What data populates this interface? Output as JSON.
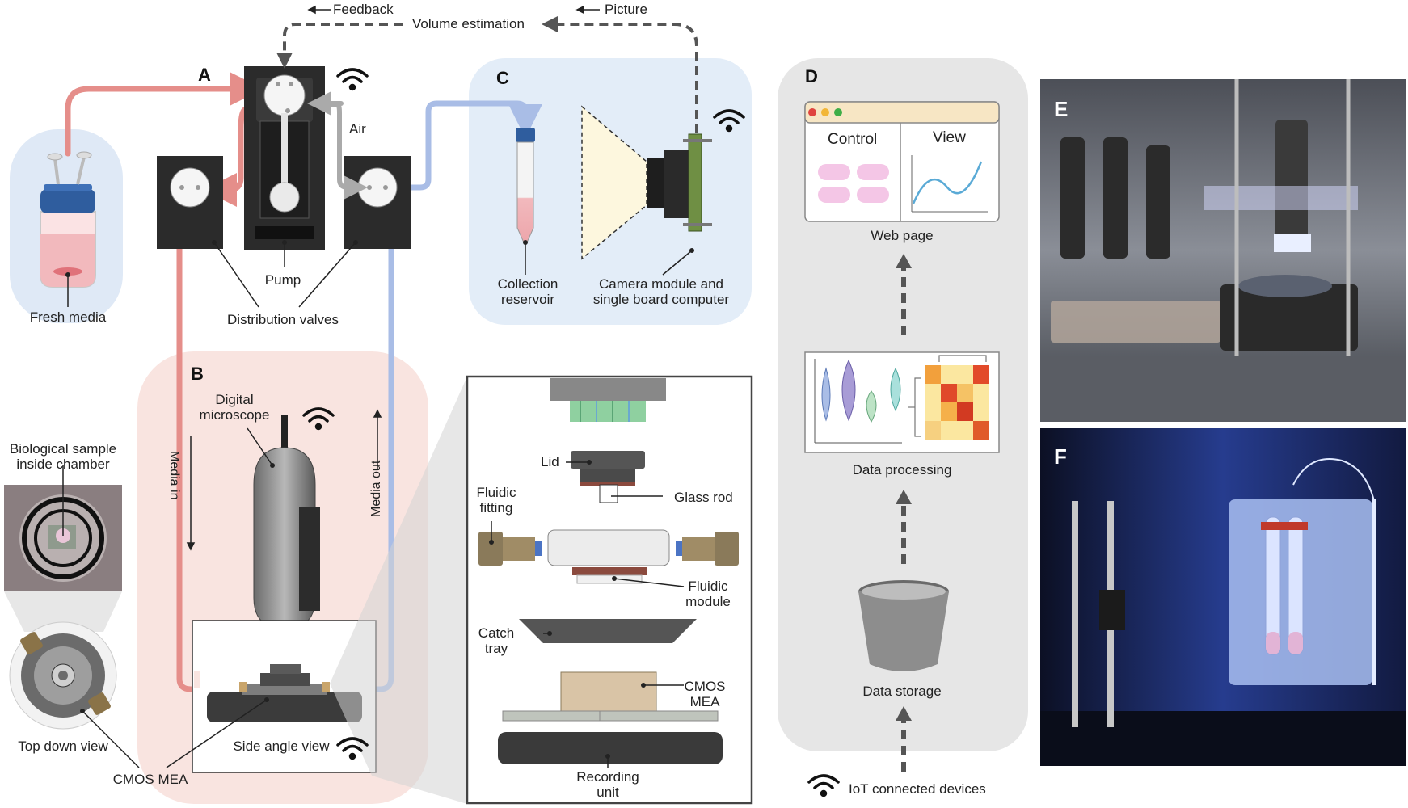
{
  "panels": {
    "a": "A",
    "b": "B",
    "c": "C",
    "d": "D",
    "e": "E",
    "f": "F"
  },
  "flow": {
    "feedback": "Feedback",
    "volume_estimation": "Volume estimation",
    "picture": "Picture",
    "air": "Air",
    "media_in": "Media in",
    "media_out": "Media out"
  },
  "labels": {
    "fresh_media": "Fresh media",
    "pump": "Pump",
    "distribution_valves": "Distribution valves",
    "collection_reservoir": "Collection\nreservoir",
    "camera_module": "Camera module and\nsingle board computer",
    "digital_microscope": "Digital\nmicroscope",
    "biological_sample": "Biological sample\ninside chamber",
    "top_down_view": "Top down view",
    "side_angle_view": "Side angle view",
    "cmos_mea": "CMOS MEA"
  },
  "exploded": {
    "lid": "Lid",
    "glass_rod": "Glass rod",
    "fluidic_fitting": "Fluidic\nfitting",
    "fluidic_module": "Fluidic\nmodule",
    "catch_tray": "Catch\ntray",
    "cmos_mea": "CMOS\nMEA",
    "recording_unit": "Recording\nunit"
  },
  "iot": {
    "control": "Control",
    "view": "View",
    "web_page": "Web page",
    "data_processing": "Data processing",
    "data_storage": "Data storage",
    "iot_devices": "IoT connected devices"
  },
  "colors": {
    "media_in": "#e58e8a",
    "media_out": "#a9bde6",
    "feedback": "#555555",
    "bg_a": "#dfe9f6",
    "bg_b": "#f9e4e0",
    "bg_c": "#e3edf8",
    "bg_d": "#e6e6e6"
  }
}
